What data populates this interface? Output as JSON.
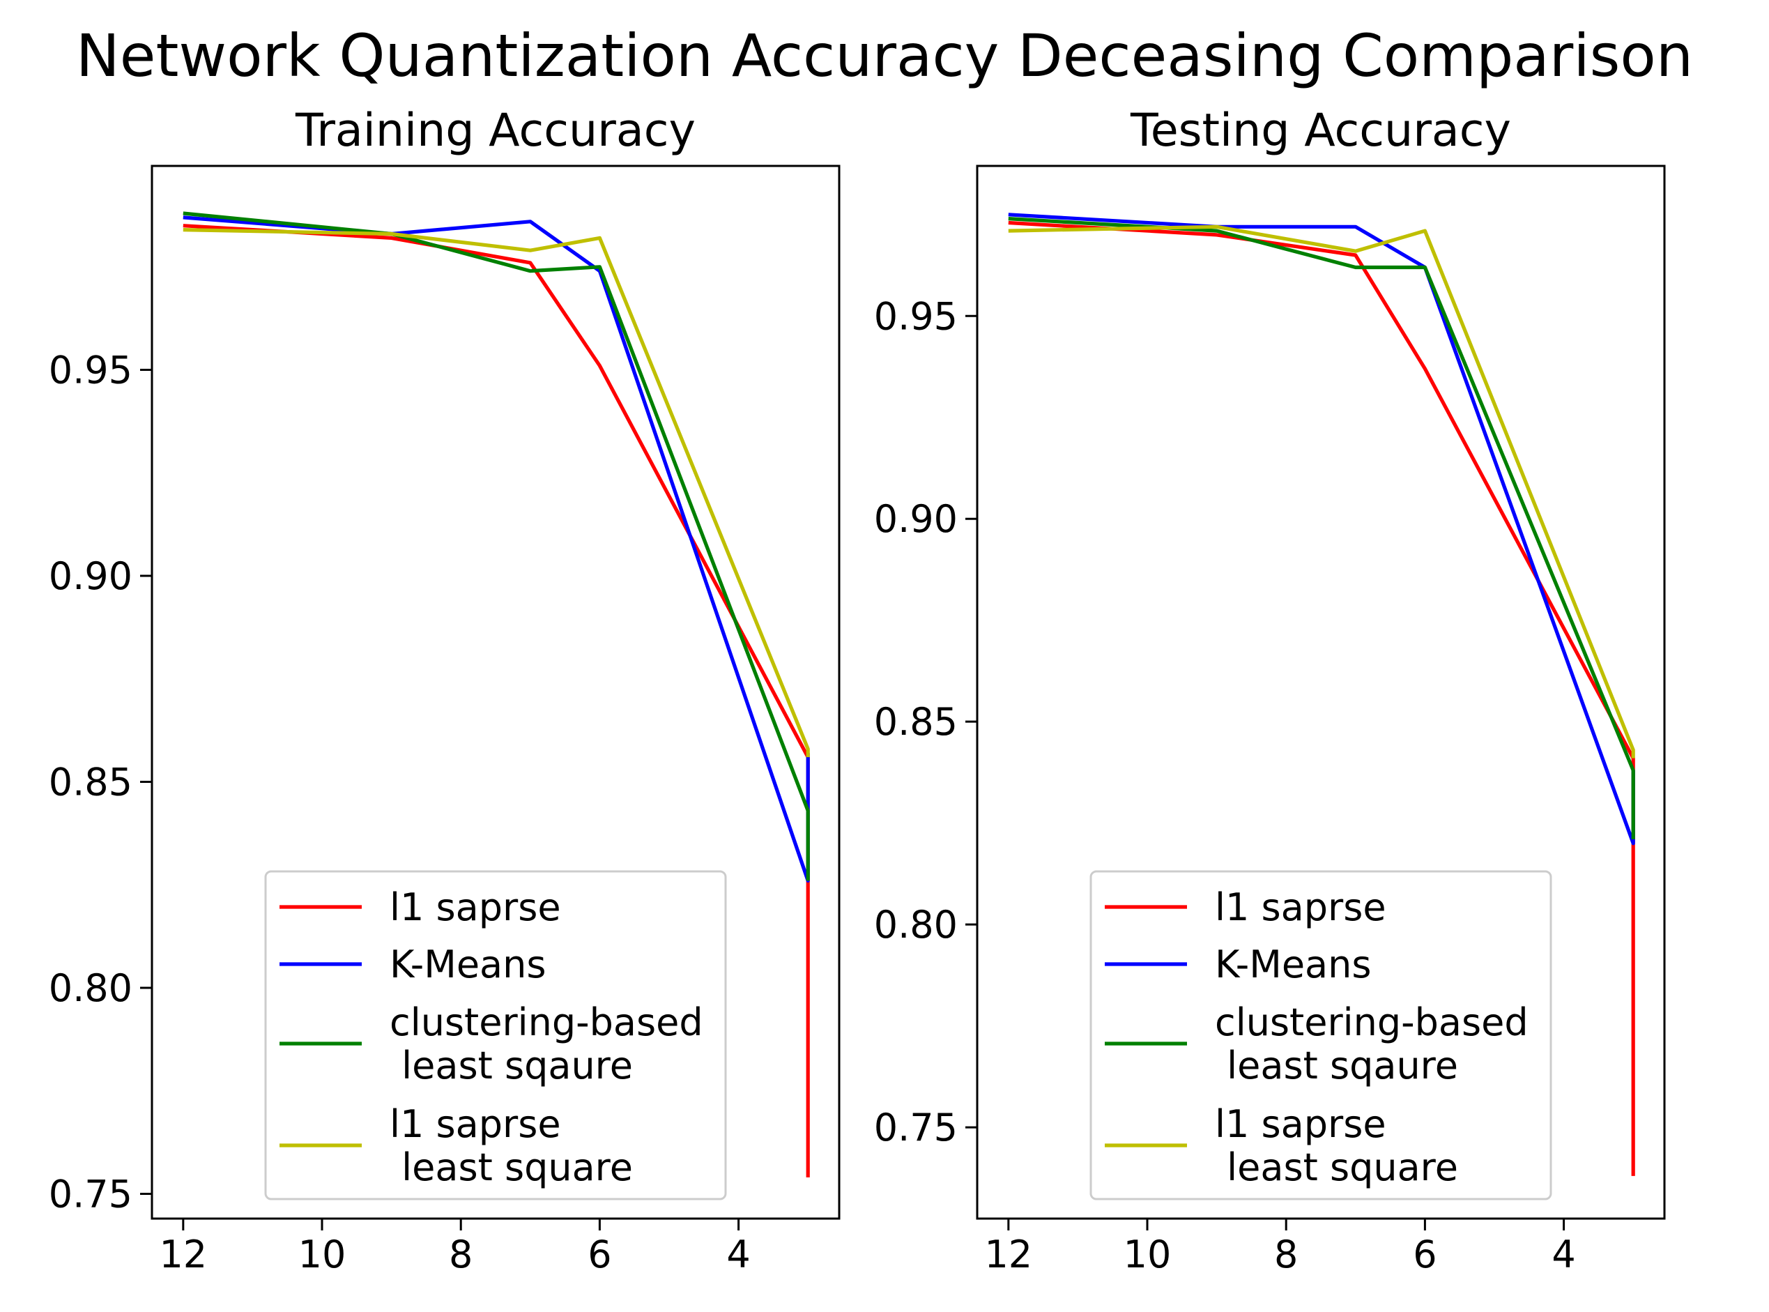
{
  "figure": {
    "suptitle": "Network Quantization Accuracy Deceasing Comparison"
  },
  "chart_data": [
    {
      "type": "line",
      "title": "Training Accuracy",
      "xlabel": "",
      "ylabel": "",
      "x_inverted": true,
      "xlim": [
        12.45,
        2.55
      ],
      "ylim": [
        0.744,
        0.9995
      ],
      "x_ticks": [
        12,
        10,
        8,
        6,
        4
      ],
      "x_tick_labels": [
        "12",
        "10",
        "8",
        "6",
        "4"
      ],
      "y_ticks": [
        0.75,
        0.8,
        0.85,
        0.9,
        0.95
      ],
      "y_tick_labels": [
        "0.75",
        "0.80",
        "0.85",
        "0.90",
        "0.95"
      ],
      "grid": false,
      "legend": "lower-center",
      "series": [
        {
          "name": "l1 saprse",
          "color": "#ff0000",
          "x": [
            12,
            9,
            7,
            6,
            3,
            3
          ],
          "y": [
            0.985,
            0.982,
            0.976,
            0.951,
            0.856,
            0.754
          ]
        },
        {
          "name": "K-Means",
          "color": "#0000ff",
          "x": [
            12,
            9,
            7,
            6,
            3,
            3
          ],
          "y": [
            0.987,
            0.983,
            0.986,
            0.974,
            0.826,
            0.857
          ]
        },
        {
          "name": "clustering-based\n least sqaure",
          "color": "#008000",
          "x": [
            12,
            9,
            7,
            6,
            3,
            3
          ],
          "y": [
            0.988,
            0.983,
            0.974,
            0.975,
            0.843,
            0.826
          ]
        },
        {
          "name": "l1 saprse\n least square",
          "color": "#bfbf00",
          "x": [
            12,
            9,
            7,
            6,
            3,
            3
          ],
          "y": [
            0.984,
            0.983,
            0.979,
            0.982,
            0.858,
            0.856
          ]
        }
      ]
    },
    {
      "type": "line",
      "title": "Testing Accuracy",
      "xlabel": "",
      "ylabel": "",
      "x_inverted": true,
      "xlim": [
        12.45,
        2.55
      ],
      "ylim": [
        0.7275,
        0.987
      ],
      "x_ticks": [
        12,
        10,
        8,
        6,
        4
      ],
      "x_tick_labels": [
        "12",
        "10",
        "8",
        "6",
        "4"
      ],
      "y_ticks": [
        0.75,
        0.8,
        0.85,
        0.9,
        0.95
      ],
      "y_tick_labels": [
        "0.75",
        "0.80",
        "0.85",
        "0.90",
        "0.95"
      ],
      "grid": false,
      "legend": "lower-center",
      "series": [
        {
          "name": "l1 saprse",
          "color": "#ff0000",
          "x": [
            12,
            9,
            7,
            6,
            3,
            3
          ],
          "y": [
            0.973,
            0.97,
            0.965,
            0.937,
            0.841,
            0.738
          ]
        },
        {
          "name": "K-Means",
          "color": "#0000ff",
          "x": [
            12,
            9,
            7,
            6,
            3,
            3
          ],
          "y": [
            0.975,
            0.972,
            0.972,
            0.962,
            0.82,
            0.838
          ]
        },
        {
          "name": "clustering-based\n least sqaure",
          "color": "#008000",
          "x": [
            12,
            9,
            7,
            6,
            3,
            3
          ],
          "y": [
            0.974,
            0.971,
            0.962,
            0.962,
            0.838,
            0.821
          ]
        },
        {
          "name": "l1 saprse\n least square",
          "color": "#bfbf00",
          "x": [
            12,
            9,
            7,
            6,
            3,
            3
          ],
          "y": [
            0.971,
            0.972,
            0.966,
            0.971,
            0.843,
            0.841
          ]
        }
      ]
    }
  ]
}
